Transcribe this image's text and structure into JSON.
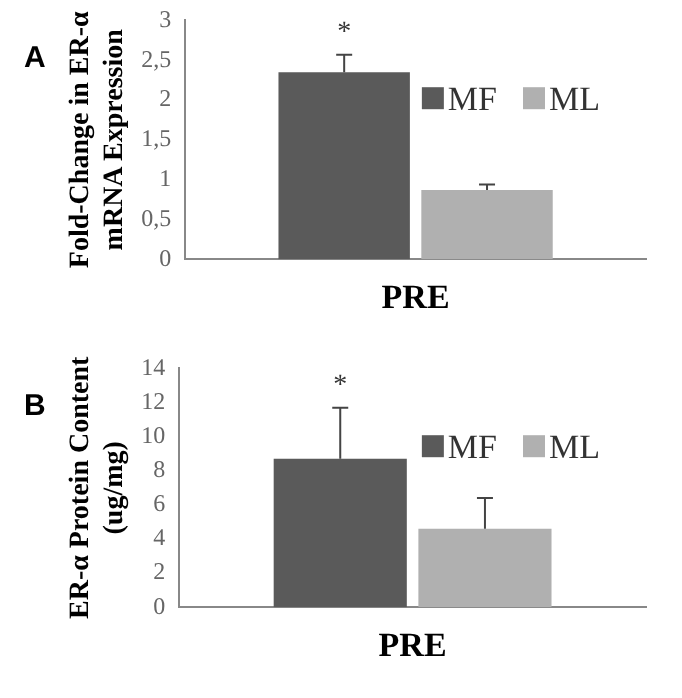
{
  "chart_data": [
    {
      "type": "bar",
      "categories": [
        "PRE"
      ],
      "ylabel": "Fold-Change in ER-α\nmRNA Expression",
      "series": [
        {
          "name": "MF",
          "color": "#5a5a5a",
          "values": [
            2.35
          ],
          "errors": [
            0.22
          ]
        },
        {
          "name": "ML",
          "color": "#b0b0b0",
          "values": [
            0.87
          ],
          "errors": [
            0.07
          ]
        }
      ],
      "ylim": [
        0,
        3
      ],
      "yticks": [
        0,
        {
          "value": 0.5,
          "label": "0,5"
        },
        1,
        {
          "value": 1.5,
          "label": "1,5"
        },
        2,
        {
          "value": 2.5,
          "label": "2,5"
        },
        3
      ],
      "grid": false,
      "legend": "top right",
      "annotations": [
        "A",
        "*"
      ]
    },
    {
      "type": "bar",
      "categories": [
        "PRE"
      ],
      "ylabel": "ER-α Protein Content\n(ug/mg)",
      "series": [
        {
          "name": "MF",
          "color": "#5a5a5a",
          "values": [
            8.7
          ],
          "errors": [
            3.0
          ]
        },
        {
          "name": "ML",
          "color": "#b0b0b0",
          "values": [
            4.6
          ],
          "errors": [
            1.8
          ]
        }
      ],
      "ylim": [
        0,
        14
      ],
      "yticks": [
        0,
        2,
        4,
        6,
        8,
        10,
        12,
        14
      ],
      "grid": false,
      "legend": "top right",
      "annotations": [
        "B",
        "*"
      ]
    }
  ]
}
